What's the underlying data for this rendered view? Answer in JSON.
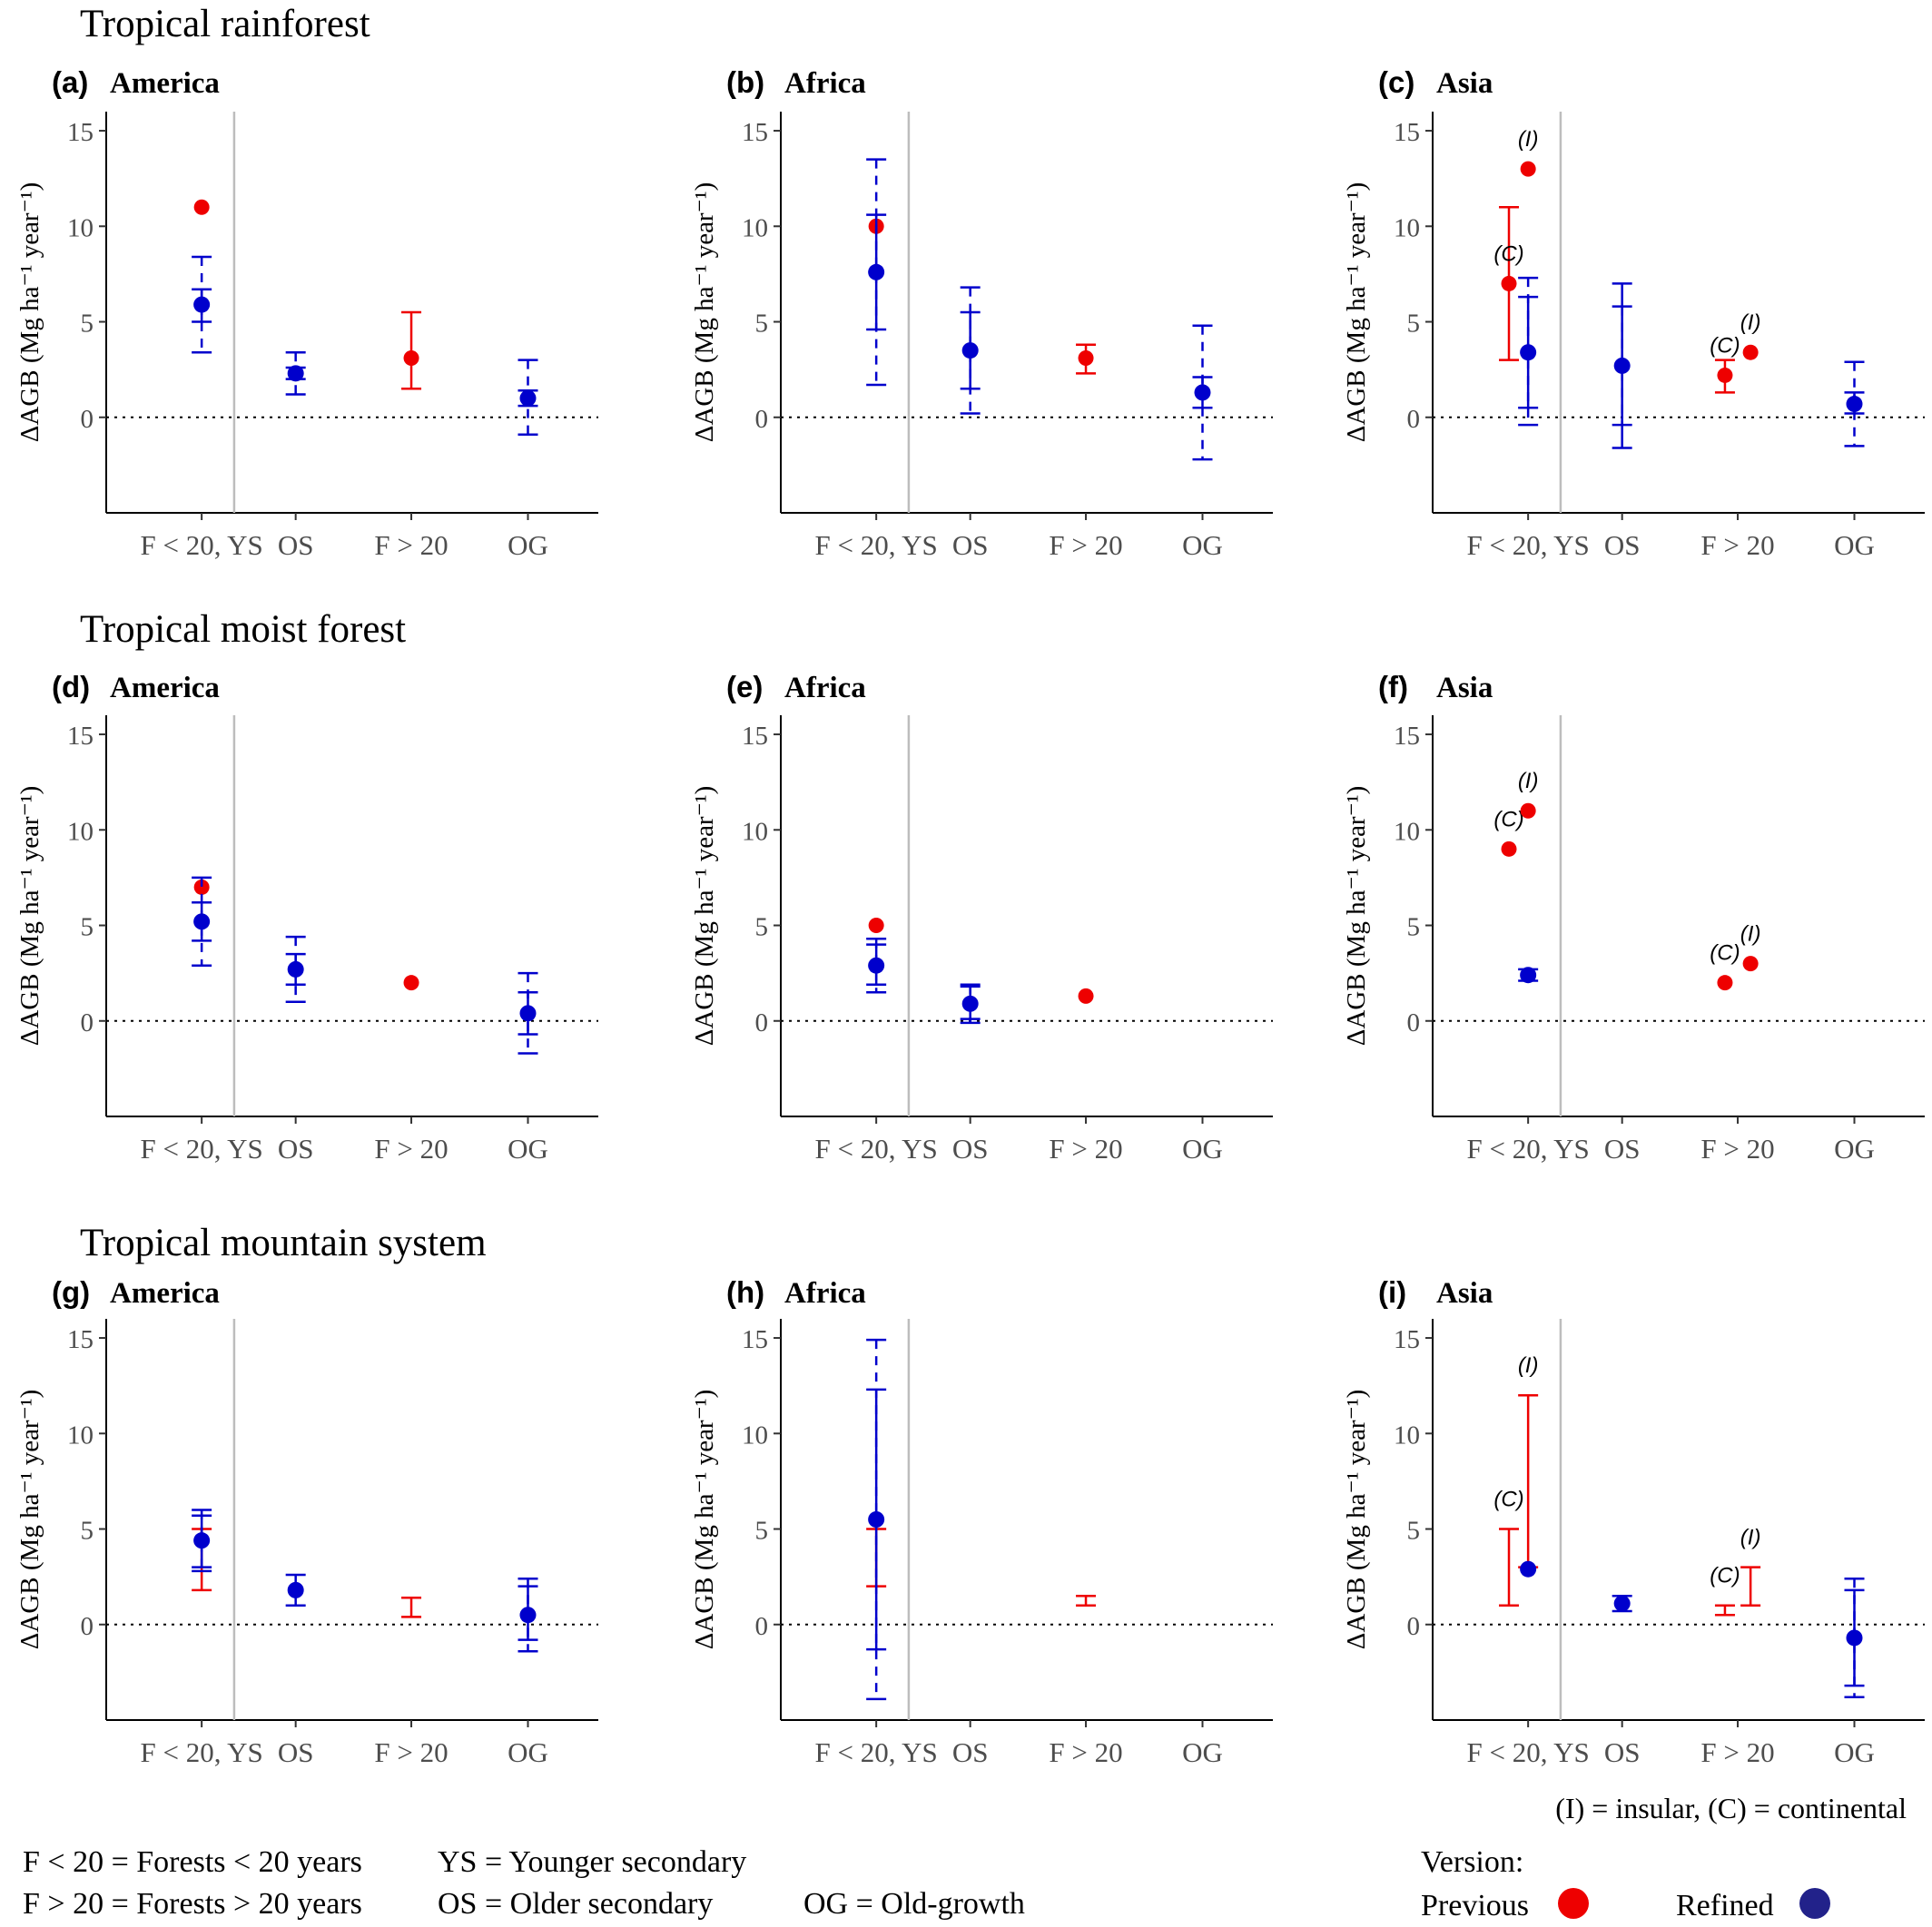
{
  "legend": {
    "insular_continental": "(I) = insular, (C) = continental",
    "abbrev": [
      "F < 20 = Forests < 20 years",
      "YS = Younger secondary",
      "F > 20 = Forests > 20 years",
      "OS = Older secondary",
      "OG = Old-growth"
    ],
    "version_title": "Version:",
    "previous_label": "Previous",
    "refined_label": "Refined",
    "previous_color": "#ee0000",
    "refined_color": "#0000cc",
    "refined_swatch_color": "#22228a"
  },
  "chart_data": {
    "type": "scatter",
    "row_titles": [
      "Tropical rainforest",
      "Tropical moist forest",
      "Tropical mountain system"
    ],
    "ylabel": "ΔAGB (Mg  ha⁻¹ year⁻¹)",
    "ylim": [
      -5,
      16
    ],
    "yticks": [
      0,
      5,
      10,
      15
    ],
    "categories": [
      "F < 20, YS",
      "OS",
      "F > 20",
      "OG"
    ],
    "reference_line_y": 0,
    "panels": [
      {
        "label": "(a)",
        "region": "America",
        "row": 0,
        "col": 0,
        "previous": [
          {
            "cat": 0,
            "y": 11
          },
          {
            "cat": 2,
            "y": 3.1,
            "lo": 1.5,
            "hi": 5.5
          }
        ],
        "refined": [
          {
            "cat": 0,
            "y": 5.9,
            "lo": 5.0,
            "hi": 6.7,
            "dlo": 3.4,
            "dhi": 8.4
          },
          {
            "cat": 1,
            "y": 2.3,
            "lo": 2.0,
            "hi": 2.6,
            "dlo": 1.2,
            "dhi": 3.4
          },
          {
            "cat": 3,
            "y": 1.0,
            "lo": 0.6,
            "hi": 1.4,
            "dlo": -0.9,
            "dhi": 3.0
          }
        ],
        "notes": []
      },
      {
        "label": "(b)",
        "region": "Africa",
        "row": 0,
        "col": 1,
        "previous": [
          {
            "cat": 0,
            "y": 10
          },
          {
            "cat": 2,
            "y": 3.1,
            "lo": 2.3,
            "hi": 3.8
          }
        ],
        "refined": [
          {
            "cat": 0,
            "y": 7.6,
            "lo": 4.6,
            "hi": 10.6,
            "dlo": 1.7,
            "dhi": 13.5
          },
          {
            "cat": 1,
            "y": 3.5,
            "lo": 1.5,
            "hi": 5.5,
            "dlo": 0.2,
            "dhi": 6.8
          },
          {
            "cat": 3,
            "y": 1.3,
            "lo": 0.5,
            "hi": 2.1,
            "dlo": -2.2,
            "dhi": 4.8
          }
        ],
        "notes": []
      },
      {
        "label": "(c)",
        "region": "Asia",
        "row": 0,
        "col": 2,
        "previous": [
          {
            "cat": 0,
            "off": -0.3,
            "y": 7,
            "lo": 3,
            "hi": 11,
            "tag": "(C)"
          },
          {
            "cat": 0,
            "off": 0,
            "y": 13,
            "tag": "(I)"
          },
          {
            "cat": 2,
            "off": -0.2,
            "y": 2.2,
            "lo": 1.3,
            "hi": 3.0,
            "tag": "(C)"
          },
          {
            "cat": 2,
            "off": 0.2,
            "y": 3.4,
            "tag": "(I)"
          }
        ],
        "refined": [
          {
            "cat": 0,
            "y": 3.4,
            "lo": 0.5,
            "hi": 6.3,
            "dlo": -0.4,
            "dhi": 7.3
          },
          {
            "cat": 1,
            "y": 2.7,
            "lo": -1.6,
            "hi": 7.0,
            "dlo": -0.4,
            "dhi": 5.8
          },
          {
            "cat": 3,
            "y": 0.7,
            "lo": 0.2,
            "hi": 1.3,
            "dlo": -1.5,
            "dhi": 2.9
          }
        ],
        "notes": []
      },
      {
        "label": "(d)",
        "region": "America",
        "row": 1,
        "col": 0,
        "previous": [
          {
            "cat": 0,
            "y": 7
          },
          {
            "cat": 2,
            "y": 2
          }
        ],
        "refined": [
          {
            "cat": 0,
            "y": 5.2,
            "lo": 4.2,
            "hi": 6.2,
            "dlo": 2.9,
            "dhi": 7.5
          },
          {
            "cat": 1,
            "y": 2.7,
            "lo": 1.9,
            "hi": 3.5,
            "dlo": 1.0,
            "dhi": 4.4
          },
          {
            "cat": 3,
            "y": 0.4,
            "lo": -0.7,
            "hi": 1.5,
            "dlo": -1.7,
            "dhi": 2.5
          }
        ],
        "notes": []
      },
      {
        "label": "(e)",
        "region": "Africa",
        "row": 1,
        "col": 1,
        "previous": [
          {
            "cat": 0,
            "y": 5
          },
          {
            "cat": 2,
            "y": 1.3
          }
        ],
        "refined": [
          {
            "cat": 0,
            "y": 2.9,
            "lo": 1.9,
            "hi": 4.0,
            "dlo": 1.5,
            "dhi": 4.3
          },
          {
            "cat": 1,
            "y": 0.9,
            "lo": 0.1,
            "hi": 1.8,
            "dlo": -0.1,
            "dhi": 1.9
          }
        ],
        "notes": []
      },
      {
        "label": "(f)",
        "region": "Asia",
        "row": 1,
        "col": 2,
        "previous": [
          {
            "cat": 0,
            "off": -0.3,
            "y": 9,
            "tag": "(C)"
          },
          {
            "cat": 0,
            "off": 0,
            "y": 11,
            "tag": "(I)"
          },
          {
            "cat": 2,
            "off": -0.2,
            "y": 2,
            "tag": "(C)"
          },
          {
            "cat": 2,
            "off": 0.2,
            "y": 3,
            "tag": "(I)"
          }
        ],
        "refined": [
          {
            "cat": 0,
            "y": 2.4,
            "lo": 2.1,
            "hi": 2.7
          }
        ],
        "notes": []
      },
      {
        "label": "(g)",
        "region": "America",
        "row": 2,
        "col": 0,
        "previous": [
          {
            "cat": 0,
            "lo": 1.8,
            "hi": 5.0
          },
          {
            "cat": 2,
            "lo": 0.4,
            "hi": 1.4
          }
        ],
        "refined": [
          {
            "cat": 0,
            "y": 4.4,
            "lo": 3.0,
            "hi": 5.7,
            "dlo": 2.8,
            "dhi": 6.0
          },
          {
            "cat": 1,
            "y": 1.8,
            "lo": 1.0,
            "hi": 2.6
          },
          {
            "cat": 3,
            "y": 0.5,
            "lo": -0.8,
            "hi": 2.0,
            "dlo": -1.4,
            "dhi": 2.4
          }
        ],
        "notes": []
      },
      {
        "label": "(h)",
        "region": "Africa",
        "row": 2,
        "col": 1,
        "previous": [
          {
            "cat": 0,
            "lo": 2.0,
            "hi": 5.0
          },
          {
            "cat": 2,
            "lo": 1.0,
            "hi": 1.5
          }
        ],
        "refined": [
          {
            "cat": 0,
            "y": 5.5,
            "lo": -1.3,
            "hi": 12.3,
            "dlo": -3.9,
            "dhi": 14.9
          }
        ],
        "notes": []
      },
      {
        "label": "(i)",
        "region": "Asia",
        "row": 2,
        "col": 2,
        "previous": [
          {
            "cat": 0,
            "off": -0.3,
            "lo": 1.0,
            "hi": 5.0,
            "tag": "(C)"
          },
          {
            "cat": 0,
            "off": 0,
            "lo": 3.0,
            "hi": 12.0,
            "tag": "(I)"
          },
          {
            "cat": 2,
            "off": -0.2,
            "lo": 0.5,
            "hi": 1.0,
            "tag": "(C)"
          },
          {
            "cat": 2,
            "off": 0.2,
            "lo": 1.0,
            "hi": 3.0,
            "tag": "(I)"
          }
        ],
        "refined": [
          {
            "cat": 0,
            "y": 2.9
          },
          {
            "cat": 1,
            "y": 1.1,
            "lo": 0.7,
            "hi": 1.5
          },
          {
            "cat": 3,
            "y": -0.7,
            "lo": -3.2,
            "hi": 1.8,
            "dlo": -3.8,
            "dhi": 2.4
          }
        ],
        "notes": []
      }
    ]
  }
}
